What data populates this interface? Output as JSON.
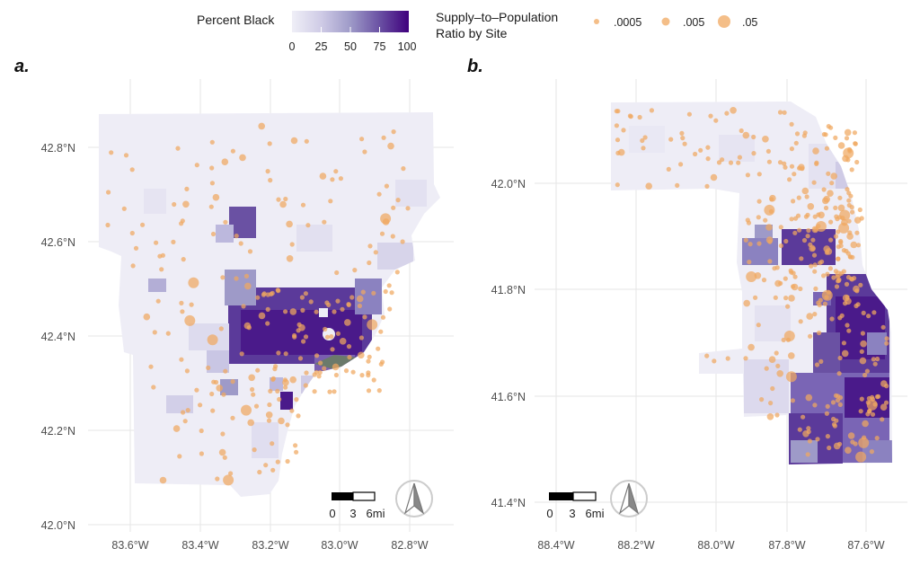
{
  "legend": {
    "fill_title": "Percent Black",
    "fill_ticks": [
      "0",
      "25",
      "50",
      "75",
      "100"
    ],
    "fill_colors": [
      "#efeff7",
      "#cfcbe6",
      "#9e9ac8",
      "#6a51a3",
      "#3f007d"
    ],
    "size_title_line1": "Supply–to–Population",
    "size_title_line2": "Ratio by Site",
    "size_values": [
      ".0005",
      ".005",
      ".05"
    ],
    "point_color": "#f0a860"
  },
  "panels": [
    {
      "label": "a.",
      "region": "Detroit metro area",
      "lat_ticks": [
        "42.8°N",
        "42.6°N",
        "42.4°N",
        "42.2°N",
        "42.0°N"
      ],
      "lon_ticks": [
        "83.6°W",
        "83.4°W",
        "83.2°W",
        "83.0°W",
        "82.8°W"
      ],
      "scalebar": {
        "labels": [
          "0",
          "3",
          "6mi"
        ]
      },
      "north_arrow": "north-arrow"
    },
    {
      "label": "b.",
      "region": "Chicago area",
      "lat_ticks": [
        "42.0°N",
        "41.8°N",
        "41.6°N",
        "41.4°N"
      ],
      "lon_ticks": [
        "88.4°W",
        "88.2°W",
        "88.0°W",
        "87.8°W",
        "87.6°W"
      ],
      "scalebar": {
        "labels": [
          "0",
          "3",
          "6mi"
        ]
      },
      "north_arrow": "north-arrow"
    }
  ]
}
